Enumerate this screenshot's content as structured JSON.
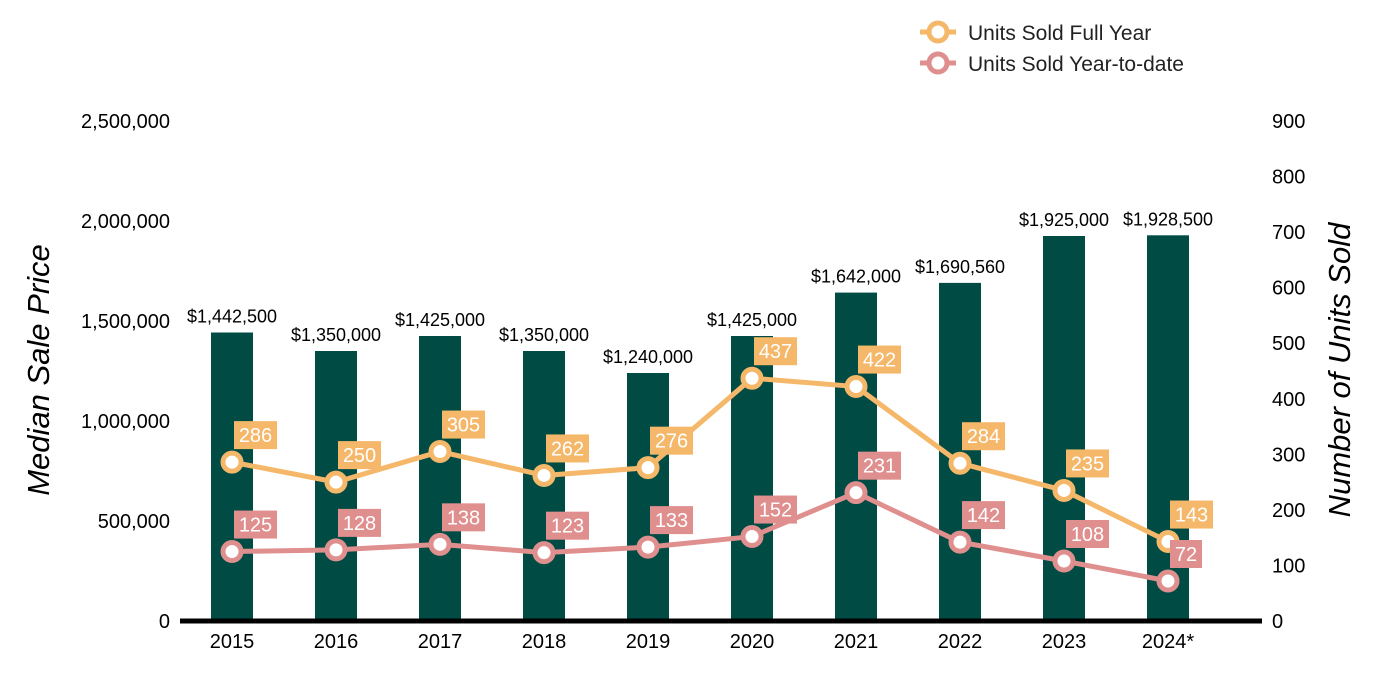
{
  "chart_data": {
    "type": "bar",
    "categories": [
      "2015",
      "2016",
      "2017",
      "2018",
      "2019",
      "2020",
      "2021",
      "2022",
      "2023",
      "2024*"
    ],
    "bar_series": {
      "values": [
        1442500,
        1350000,
        1425000,
        1350000,
        1240000,
        1425000,
        1642000,
        1690560,
        1925000,
        1928500
      ],
      "labels": [
        "$1,442,500",
        "$1,350,000",
        "$1,425,000",
        "$1,350,000",
        "$1,240,000",
        "$1,425,000",
        "$1,642,000",
        "$1,690,560",
        "$1,925,000",
        "$1,928,500"
      ],
      "color": "#004c44"
    },
    "line_series": [
      {
        "name": "Units Sold Full Year",
        "type": "line",
        "color": "#f5b86a",
        "values": [
          286,
          250,
          305,
          262,
          276,
          437,
          422,
          284,
          235,
          143
        ]
      },
      {
        "name": "Units Sold Year-to-date",
        "type": "line",
        "color": "#e08f8f",
        "values": [
          125,
          128,
          138,
          123,
          133,
          152,
          231,
          142,
          108,
          72
        ]
      }
    ],
    "ylabel_left": "Median Sale Price",
    "ylabel_right": "Number of Units Sold",
    "ylim_left": [
      0,
      2500000
    ],
    "ylim_right": [
      0,
      900
    ],
    "yticks_left": [
      "0",
      "500,000",
      "1,000,000",
      "1,500,000",
      "2,000,000",
      "2,500,000"
    ],
    "yticks_right": [
      "0",
      "100",
      "200",
      "300",
      "400",
      "500",
      "600",
      "700",
      "800",
      "900"
    ],
    "grid": false,
    "legend_position": "top-right"
  }
}
